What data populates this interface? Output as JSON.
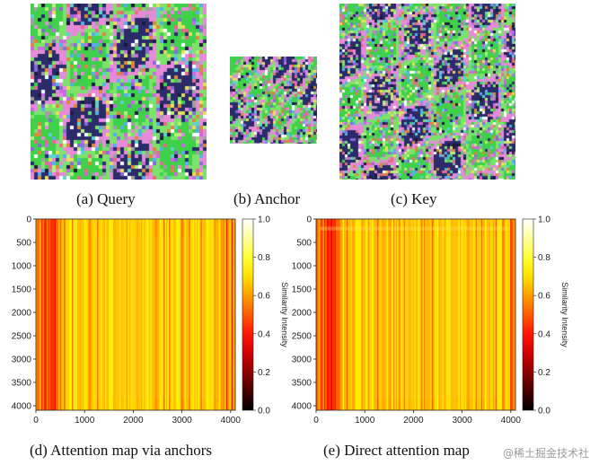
{
  "images": [
    {
      "caption": "(a) Query"
    },
    {
      "caption": "(b) Anchor"
    },
    {
      "caption": "(c) Key"
    }
  ],
  "chart_data": [
    {
      "type": "heatmap",
      "caption": "(d) Attention map via anchors",
      "x_ticks": [
        0,
        1000,
        2000,
        3000,
        4000
      ],
      "y_ticks": [
        0,
        500,
        1000,
        1500,
        2000,
        2500,
        3000,
        3500,
        4000
      ],
      "xlim": [
        0,
        4096
      ],
      "ylim": [
        4096,
        0
      ],
      "colorbar": {
        "label": "Similarity Intensity",
        "ticks": [
          "1.0",
          "0.8",
          "0.6",
          "0.4",
          "0.2",
          "0.0"
        ],
        "range": [
          0.0,
          1.0
        ],
        "cmap": "hot"
      }
    },
    {
      "type": "heatmap",
      "caption": "(e) Direct attention map",
      "x_ticks": [
        0,
        1000,
        2000,
        3000,
        4000
      ],
      "y_ticks": [
        0,
        500,
        1000,
        1500,
        2000,
        2500,
        3000,
        3500,
        4000
      ],
      "xlim": [
        0,
        4096
      ],
      "ylim": [
        4096,
        0
      ],
      "colorbar": {
        "label": "Similarity Intensity",
        "ticks": [
          "1.0",
          "0.8",
          "0.6",
          "0.4",
          "0.2",
          "0.0"
        ],
        "range": [
          0.0,
          1.0
        ],
        "cmap": "hot"
      }
    }
  ],
  "watermark": "@稀土掘金技术社区"
}
